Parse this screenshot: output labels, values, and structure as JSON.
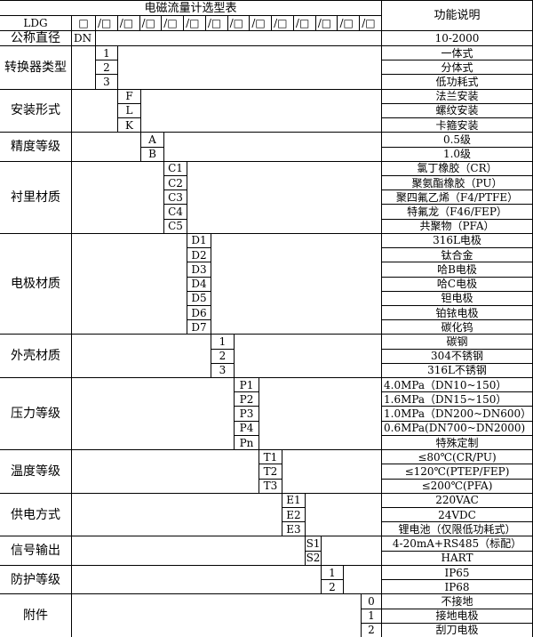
{
  "title": "电磁流量计选型表",
  "function_header": "功能说明",
  "model_prefix": "LDG",
  "header_boxes": [
    "□",
    "/□",
    "/□",
    "/□",
    "/□",
    "/□",
    "/□",
    "/□",
    "/□",
    "/□",
    "/□",
    "/□",
    "/□",
    "/□"
  ],
  "nominal_diameter": {
    "label": "公称直径",
    "code": "DN",
    "desc": "10-2000"
  },
  "sections": [
    {
      "label": "转换器类型",
      "rows": [
        {
          "code": "1",
          "desc": "一体式"
        },
        {
          "code": "2",
          "desc": "分体式"
        },
        {
          "code": "3",
          "desc": "低功耗式"
        }
      ]
    },
    {
      "label": "安装形式",
      "rows": [
        {
          "code": "F",
          "desc": "法兰安装"
        },
        {
          "code": "L",
          "desc": "螺纹安装"
        },
        {
          "code": "K",
          "desc": "卡箍安装"
        }
      ]
    },
    {
      "label": "精度等级",
      "rows": [
        {
          "code": "A",
          "desc": "0.5级"
        },
        {
          "code": "B",
          "desc": "1.0级"
        }
      ]
    },
    {
      "label": "衬里材质",
      "rows": [
        {
          "code": "C1",
          "desc": "氯丁橡胶（CR）"
        },
        {
          "code": "C2",
          "desc": "聚氨酯橡胶（PU）"
        },
        {
          "code": "C3",
          "desc": "聚四氟乙烯（F4/PTFE）"
        },
        {
          "code": "C4",
          "desc": "特氟龙（F46/FEP）"
        },
        {
          "code": "C5",
          "desc": "共聚物（PFA）"
        }
      ]
    },
    {
      "label": "电极材质",
      "rows": [
        {
          "code": "D1",
          "desc": "316L电极"
        },
        {
          "code": "D2",
          "desc": "钛合金"
        },
        {
          "code": "D3",
          "desc": "哈B电极"
        },
        {
          "code": "D4",
          "desc": "哈C电极"
        },
        {
          "code": "D5",
          "desc": "钽电极"
        },
        {
          "code": "D6",
          "desc": "铂铱电极"
        },
        {
          "code": "D7",
          "desc": "碳化钨"
        }
      ]
    },
    {
      "label": "外壳材质",
      "rows": [
        {
          "code": "1",
          "desc": "碳钢"
        },
        {
          "code": "2",
          "desc": "304不锈钢"
        },
        {
          "code": "3",
          "desc": "316L不锈钢"
        }
      ]
    },
    {
      "label": "压力等级",
      "rows": [
        {
          "code": "P1",
          "desc": "4.0MPa（DN10~150）",
          "left": true
        },
        {
          "code": "P2",
          "desc": "1.6MPa（DN15~150）",
          "left": true
        },
        {
          "code": "P3",
          "desc": "1.0MPa（DN200~DN600）",
          "left": true
        },
        {
          "code": "P4",
          "desc": "0.6MPa(DN700~DN2000)",
          "left": true
        },
        {
          "code": "Pn",
          "desc": "特殊定制"
        }
      ]
    },
    {
      "label": "温度等级",
      "rows": [
        {
          "code": "T1",
          "desc": "≤80℃(CR/PU)"
        },
        {
          "code": "T2",
          "desc": "≤120℃(PTEP/FEP)"
        },
        {
          "code": "T3",
          "desc": "≤200℃(PFA)"
        }
      ]
    },
    {
      "label": "供电方式",
      "rows": [
        {
          "code": "E1",
          "desc": "220VAC"
        },
        {
          "code": "E2",
          "desc": "24VDC"
        },
        {
          "code": "E3",
          "desc": "锂电池（仅限低功耗式）"
        }
      ]
    },
    {
      "label": "信号输出",
      "rows": [
        {
          "code": "S1",
          "desc": "4-20mA+RS485（标配）"
        },
        {
          "code": "S2",
          "desc": "HART"
        }
      ]
    },
    {
      "label": "防护等级",
      "rows": [
        {
          "code": "1",
          "desc": "IP65"
        },
        {
          "code": "2",
          "desc": "IP68"
        }
      ]
    },
    {
      "label": "附件",
      "rows": [
        {
          "code": "0",
          "desc": "不接地"
        },
        {
          "code": "1",
          "desc": "接地电极"
        },
        {
          "code": "2",
          "desc": "刮刀电极"
        }
      ]
    }
  ]
}
